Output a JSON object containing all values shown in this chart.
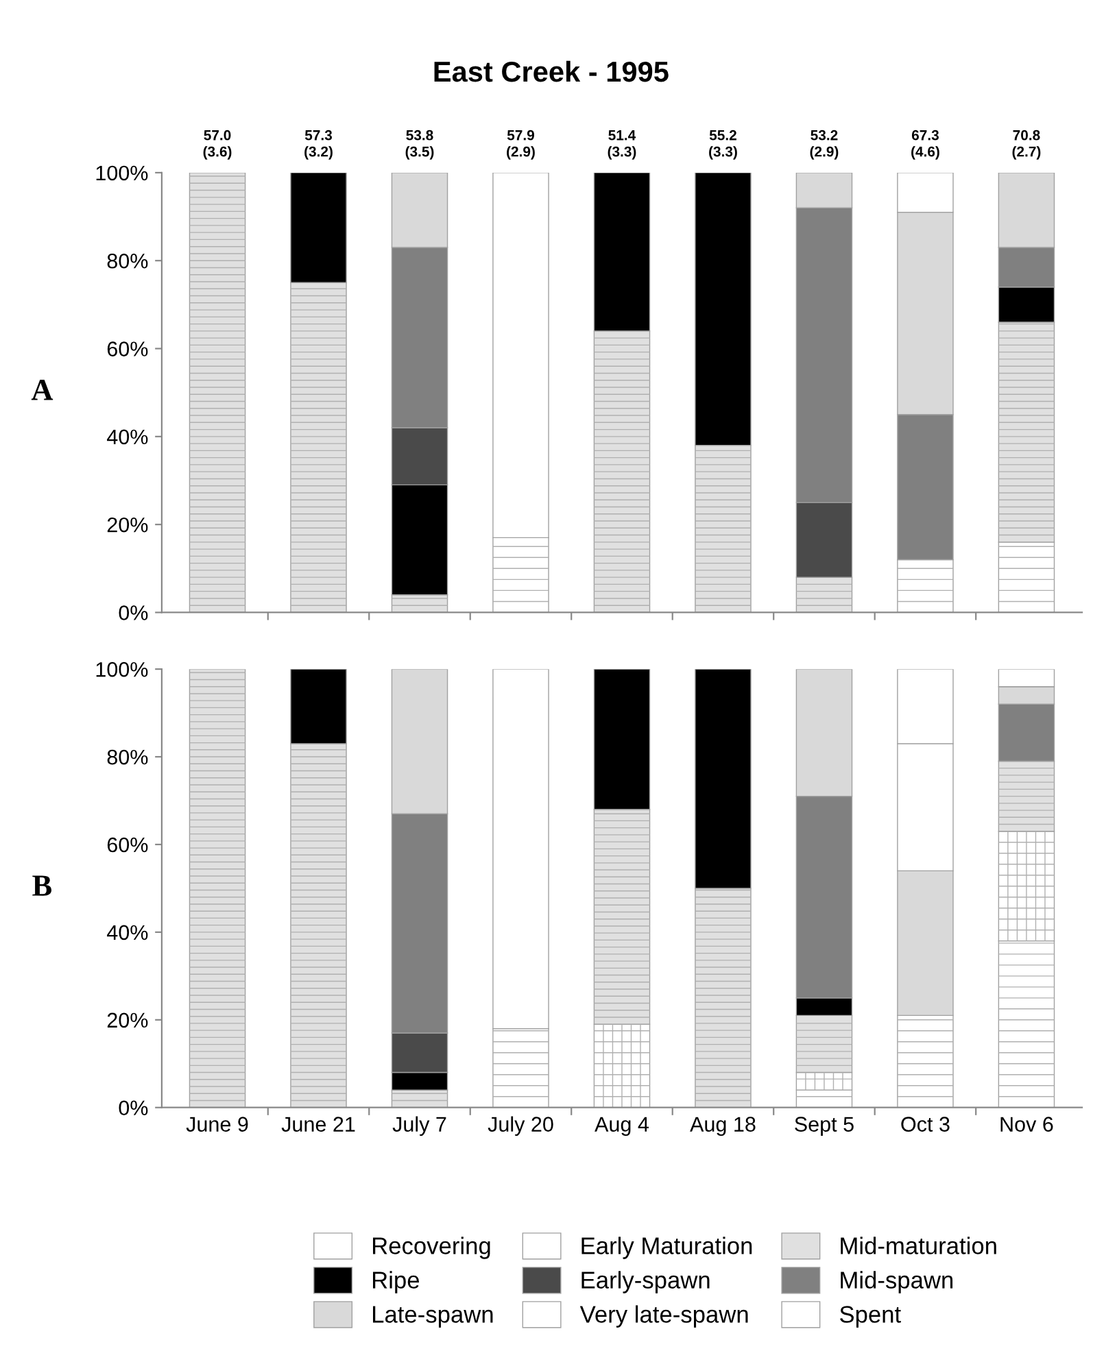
{
  "chart_data": [
    {
      "type": "bar",
      "title": "East Creek - 1995",
      "ylabel": "A",
      "stacked": true,
      "legend": "bottom",
      "grid": false,
      "categories": [
        null,
        null,
        null,
        null,
        null,
        null,
        null,
        null,
        null
      ],
      "ylim": [
        0,
        100
      ],
      "yticks": [
        {
          "value": 0,
          "label": "0%"
        },
        {
          "value": 20,
          "label": "20%"
        },
        {
          "value": 40,
          "label": "40%"
        },
        {
          "value": 60,
          "label": "60%"
        },
        {
          "value": 80,
          "label": "80%"
        },
        {
          "value": 100,
          "label": "100%"
        }
      ],
      "annotations": [
        "57.0\n(3.6)",
        "57.3\n(3.2)",
        "53.8\n(3.5)",
        "57.9\n(2.9)",
        "51.4\n(3.3)",
        "55.2\n(3.3)",
        "53.2\n(2.9)",
        "67.3\n(4.6)",
        "70.8\n(2.7)"
      ],
      "series": [
        {
          "name": "Recovering",
          "color": "#ffffff",
          "values": [
            null,
            null,
            null,
            17,
            null,
            null,
            null,
            12,
            16
          ]
        },
        {
          "name": "Early Maturation",
          "color": "#ffffff",
          "values": [
            null,
            null,
            null,
            null,
            null,
            null,
            null,
            null,
            null
          ]
        },
        {
          "name": "Mid-maturation",
          "color": "#e0e0e0",
          "values": [
            100,
            75,
            4,
            null,
            64,
            38,
            8,
            null,
            50
          ]
        },
        {
          "name": "Ripe",
          "color": "#000000",
          "values": [
            null,
            25,
            25,
            null,
            36,
            62,
            null,
            null,
            8
          ]
        },
        {
          "name": "Early-spawn",
          "color": "#4a4a4a",
          "values": [
            null,
            null,
            13,
            null,
            null,
            null,
            17,
            null,
            null
          ]
        },
        {
          "name": "Mid-spawn",
          "color": "#808080",
          "values": [
            null,
            null,
            41,
            null,
            null,
            null,
            67,
            33,
            9
          ]
        },
        {
          "name": "Late-spawn",
          "color": "#d9d9d9",
          "values": [
            null,
            null,
            17,
            null,
            null,
            null,
            8,
            46,
            17
          ]
        },
        {
          "name": "Very late-spawn",
          "color": "#ffffff",
          "values": [
            null,
            null,
            null,
            null,
            null,
            null,
            null,
            null,
            null
          ]
        },
        {
          "name": "Spent",
          "color": "#ffffff",
          "values": [
            null,
            null,
            null,
            83,
            null,
            null,
            null,
            9,
            null
          ]
        }
      ]
    },
    {
      "type": "bar",
      "ylabel": "B",
      "stacked": true,
      "grid": false,
      "categories": [
        "June 9",
        "June 21",
        "July 7",
        "July 20",
        "Aug 4",
        "Aug 18",
        "Sept 5",
        "Oct 3",
        "Nov 6"
      ],
      "ylim": [
        0,
        100
      ],
      "yticks": [
        {
          "value": 0,
          "label": "0%"
        },
        {
          "value": 20,
          "label": "20%"
        },
        {
          "value": 40,
          "label": "40%"
        },
        {
          "value": 60,
          "label": "60%"
        },
        {
          "value": 80,
          "label": "80%"
        },
        {
          "value": 100,
          "label": "100%"
        }
      ],
      "series": [
        {
          "color": "#ffffff",
          "values": [
            null,
            null,
            null,
            18,
            null,
            null,
            4,
            21,
            38
          ]
        },
        {
          "color": "#ffffff",
          "values": [
            null,
            null,
            null,
            null,
            19,
            null,
            4,
            null,
            25
          ]
        },
        {
          "color": "#e0e0e0",
          "values": [
            100,
            83,
            4,
            null,
            49,
            50,
            13,
            null,
            16
          ]
        },
        {
          "color": "#000000",
          "values": [
            null,
            17,
            4,
            null,
            32,
            50,
            4,
            null,
            null
          ]
        },
        {
          "color": "#4a4a4a",
          "values": [
            null,
            null,
            9,
            null,
            null,
            null,
            null,
            null,
            null
          ]
        },
        {
          "color": "#808080",
          "values": [
            null,
            null,
            50,
            null,
            null,
            null,
            46,
            null,
            13
          ]
        },
        {
          "color": "#d9d9d9",
          "values": [
            null,
            null,
            33,
            null,
            null,
            null,
            29,
            33,
            4
          ]
        },
        {
          "color": "#ffffff",
          "values": [
            null,
            null,
            null,
            null,
            null,
            null,
            null,
            29,
            null
          ]
        },
        {
          "color": "#ffffff",
          "values": [
            null,
            null,
            null,
            82,
            null,
            null,
            null,
            17,
            4
          ]
        }
      ]
    }
  ]
}
